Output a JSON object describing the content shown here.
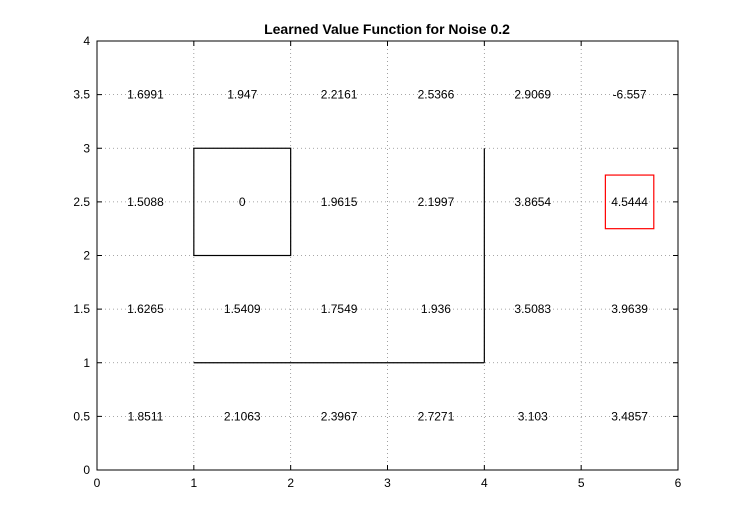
{
  "chart_data": {
    "type": "heatmap",
    "title": "Learned Value Function for Noise 0.2",
    "xlabel": "",
    "ylabel": "",
    "xlim": [
      0,
      6
    ],
    "ylim": [
      0,
      4
    ],
    "x_ticks": [
      "0",
      "1",
      "2",
      "3",
      "4",
      "5",
      "6"
    ],
    "y_ticks": [
      "0",
      "0.5",
      "1",
      "1.5",
      "2",
      "2.5",
      "3",
      "3.5",
      "4"
    ],
    "grid": true,
    "cells": [
      {
        "x": 0.5,
        "y": 3.5,
        "label": "1.6991"
      },
      {
        "x": 1.5,
        "y": 3.5,
        "label": "1.947"
      },
      {
        "x": 2.5,
        "y": 3.5,
        "label": "2.2161"
      },
      {
        "x": 3.5,
        "y": 3.5,
        "label": "2.5366"
      },
      {
        "x": 4.5,
        "y": 3.5,
        "label": "2.9069"
      },
      {
        "x": 5.5,
        "y": 3.5,
        "label": "-6.557"
      },
      {
        "x": 0.5,
        "y": 2.5,
        "label": "1.5088"
      },
      {
        "x": 1.5,
        "y": 2.5,
        "label": "0"
      },
      {
        "x": 2.5,
        "y": 2.5,
        "label": "1.9615"
      },
      {
        "x": 3.5,
        "y": 2.5,
        "label": "2.1997"
      },
      {
        "x": 4.5,
        "y": 2.5,
        "label": "3.8654"
      },
      {
        "x": 5.5,
        "y": 2.5,
        "label": "4.5444"
      },
      {
        "x": 0.5,
        "y": 1.5,
        "label": "1.6265"
      },
      {
        "x": 1.5,
        "y": 1.5,
        "label": "1.5409"
      },
      {
        "x": 2.5,
        "y": 1.5,
        "label": "1.7549"
      },
      {
        "x": 3.5,
        "y": 1.5,
        "label": "1.936"
      },
      {
        "x": 4.5,
        "y": 1.5,
        "label": "3.5083"
      },
      {
        "x": 5.5,
        "y": 1.5,
        "label": "3.9639"
      },
      {
        "x": 0.5,
        "y": 0.5,
        "label": "1.8511"
      },
      {
        "x": 1.5,
        "y": 0.5,
        "label": "2.1063"
      },
      {
        "x": 2.5,
        "y": 0.5,
        "label": "2.3967"
      },
      {
        "x": 3.5,
        "y": 0.5,
        "label": "2.7271"
      },
      {
        "x": 4.5,
        "y": 0.5,
        "label": "3.103"
      },
      {
        "x": 5.5,
        "y": 0.5,
        "label": "3.4857"
      }
    ],
    "obstacle": {
      "x0": 1,
      "y0": 2,
      "x1": 2,
      "y1": 3
    },
    "walls": [
      {
        "x": [
          1,
          4
        ],
        "y": [
          1,
          1
        ]
      },
      {
        "x": [
          4,
          4
        ],
        "y": [
          1,
          3
        ]
      }
    ],
    "highlight": {
      "x0": 5.25,
      "y0": 2.25,
      "x1": 5.75,
      "y1": 2.75,
      "color": "#ff0000"
    }
  }
}
